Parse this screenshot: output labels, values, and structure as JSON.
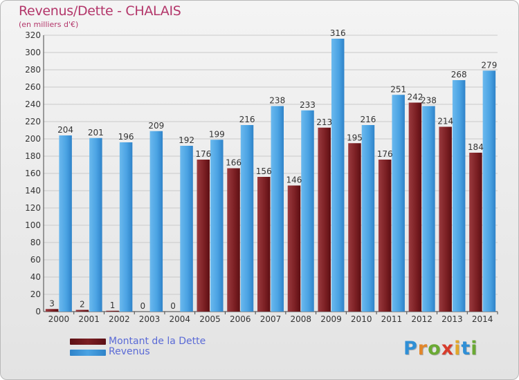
{
  "chart_data": {
    "type": "bar",
    "title": "Revenus/Dette - CHALAIS",
    "subtitle": "(en milliers d'€)",
    "xlabel": "",
    "ylabel": "",
    "ylim": [
      0,
      320
    ],
    "ytick_step": 20,
    "grid": true,
    "legend_position": "bottom-left",
    "categories": [
      "2000",
      "2001",
      "2002",
      "2003",
      "2004",
      "2005",
      "2006",
      "2007",
      "2008",
      "2009",
      "2010",
      "2011",
      "2012",
      "2013",
      "2014"
    ],
    "series": [
      {
        "name": "Montant de la Dette",
        "color": "#7a1e22",
        "values": [
          3,
          2,
          1,
          0,
          0,
          176,
          166,
          156,
          146,
          213,
          195,
          176,
          242,
          214,
          184
        ]
      },
      {
        "name": "Revenus",
        "color": "#4ba3e3",
        "values": [
          204,
          201,
          196,
          209,
          192,
          199,
          216,
          238,
          233,
          316,
          216,
          251,
          238,
          268,
          279
        ]
      }
    ]
  },
  "logo": {
    "letters": [
      "P",
      "r",
      "o",
      "x",
      "i",
      "t",
      "i"
    ],
    "colors": [
      "#2f8fd6",
      "#e2862a",
      "#6aa933",
      "#d73c2c",
      "#e2a72a",
      "#2f8fd6",
      "#6aa933"
    ]
  }
}
